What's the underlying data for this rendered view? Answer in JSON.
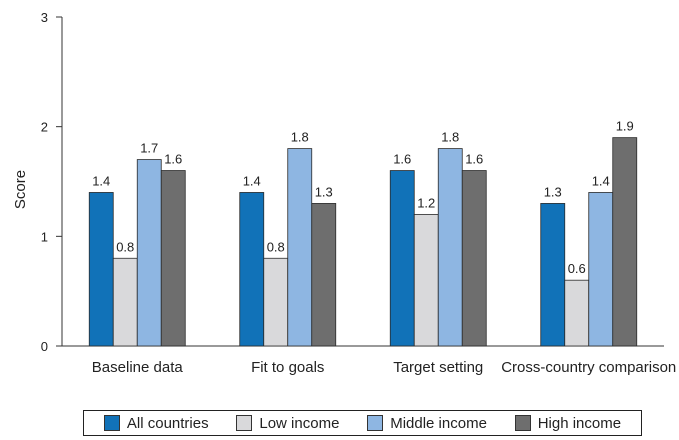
{
  "chart_data": {
    "type": "bar",
    "title": "",
    "xlabel": "",
    "ylabel": "Score",
    "ylim": [
      0,
      3
    ],
    "yticks": [
      0,
      1,
      2,
      3
    ],
    "grid": false,
    "legend_position": "bottom",
    "categories": [
      "Baseline data",
      "Fit to goals",
      "Target setting",
      "Cross-country comparison"
    ],
    "series": [
      {
        "name": "All countries",
        "color": "#1172b8",
        "values": [
          1.4,
          1.4,
          1.6,
          1.3
        ],
        "labels": [
          "1.4",
          "1.4",
          "1.6",
          "1.3"
        ]
      },
      {
        "name": "Low income",
        "color": "#d9d9db",
        "values": [
          0.8,
          0.8,
          1.2,
          0.6
        ],
        "labels": [
          "0.8",
          "0.8",
          "1.2",
          "0.6"
        ]
      },
      {
        "name": "Middle income",
        "color": "#8eb6e2",
        "values": [
          1.7,
          1.8,
          1.8,
          1.4
        ],
        "labels": [
          "1.7",
          "1.8",
          "1.8",
          "1.4"
        ]
      },
      {
        "name": "High income",
        "color": "#6e6e6e",
        "values": [
          1.6,
          1.3,
          1.6,
          1.9
        ],
        "labels": [
          "1.6",
          "1.3",
          "1.6",
          "1.9"
        ]
      }
    ]
  }
}
